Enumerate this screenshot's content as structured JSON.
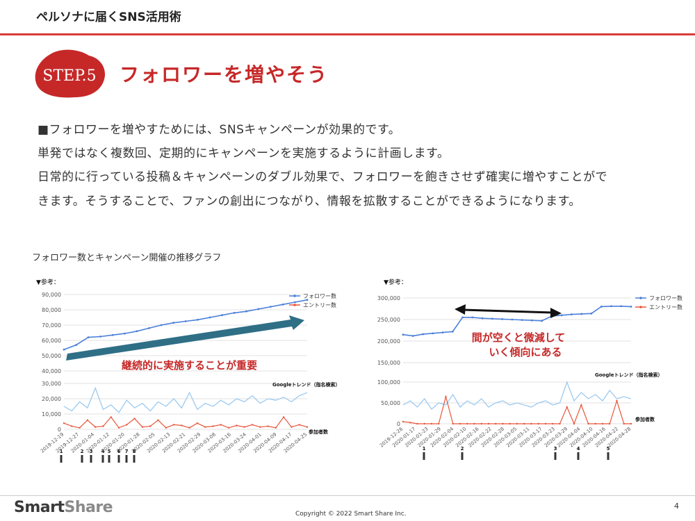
{
  "header": {
    "title": "ペルソナに届くSNS活用術"
  },
  "step": {
    "badge": "STEP.5",
    "heading": "フォロワーを増やそう"
  },
  "body_lines": [
    "■フォロワーを増やすためには、SNSキャンペーンが効果的です。",
    "単発ではなく複数回、定期的にキャンペーンを実施するように計画します。",
    "日常的に行っている投稿＆キャンペーンのダブル効果で、フォロワーを飽きさせず確実に増やすことがで",
    "きます。そうすることで、ファンの創出につながり、情報を拡散することができるようになります。"
  ],
  "chart_caption": "フォロワー数とキャンペーン開催の推移グラフ",
  "colors": {
    "accent": "#d93a3a",
    "follower": "#4a7fd8",
    "entry": "#e8563a",
    "trend": "#9ccaf0",
    "arrow_teal": "#2e6f86",
    "annotation": "#c62828"
  },
  "chart_data": [
    {
      "type": "line",
      "corner_label": "▼参考：",
      "upper": {
        "ylim": [
          40000,
          90000
        ],
        "yticks": [
          "90,000",
          "80,000",
          "70,000",
          "60,000",
          "50,000",
          "40,000"
        ],
        "series": [
          {
            "name": "フォロワー数",
            "values": [
              54000,
              57000,
              62000,
              62500,
              63500,
              64500,
              66000,
              68000,
              70000,
              71500,
              72500,
              73500,
              75000,
              76500,
              78000,
              79000,
              80500,
              82000,
              83500,
              85000,
              86500
            ]
          },
          {
            "name": "エントリー数",
            "values": []
          }
        ]
      },
      "lower": {
        "ylim": [
          0,
          30000
        ],
        "yticks": [
          "30,000",
          "20,000",
          "10,000",
          "0"
        ],
        "trend_label": "Googleトレンド（指名検索）",
        "entry_label": "参加者数",
        "trend_values": [
          15000,
          12000,
          18000,
          14000,
          27000,
          13000,
          16000,
          11000,
          19000,
          14000,
          17000,
          12000,
          18000,
          15000,
          20000,
          14000,
          24000,
          13000,
          17000,
          15000,
          19000,
          16000,
          20000,
          18000,
          22000,
          17000,
          20000,
          19000,
          21000,
          18000,
          22000,
          24000
        ],
        "entry_values": [
          4000,
          2000,
          1000,
          6000,
          1500,
          2000,
          8000,
          1000,
          3000,
          7000,
          1500,
          2000,
          6000,
          1000,
          3000,
          2500,
          1000,
          4000,
          1500,
          2000,
          3000,
          1000,
          2500,
          1500,
          3000,
          1500,
          2000,
          1000,
          8000,
          1500,
          3000,
          1500
        ]
      },
      "x_ticks": [
        "2019-12-19",
        "2019-12-27",
        "2020-01-04",
        "2020-01-12",
        "2020-01-20",
        "2020-01-28",
        "2020-02-05",
        "2020-02-13",
        "2020-02-21",
        "2020-02-29",
        "2020-03-08",
        "2020-03-16",
        "2020-03-24",
        "2020-04-01",
        "2020-04-09",
        "2020-04-17",
        "2020-04-25"
      ],
      "campaign_markers": [
        "1",
        "2",
        "3",
        "4",
        "5",
        "6",
        "7",
        "8"
      ],
      "annotation": "継続的に実施することが重要"
    },
    {
      "type": "line",
      "corner_label": "▼参考：",
      "upper": {
        "ylim": [
          150000,
          300000
        ],
        "yticks": [
          "300,000",
          "250,000",
          "200,000",
          "150,000"
        ],
        "series": [
          {
            "name": "フォロワー数",
            "values": [
              215000,
              212000,
              216000,
              218000,
              220000,
              222000,
              255000,
              255000,
              253000,
              252000,
              251000,
              250000,
              249000,
              248000,
              247000,
              258000,
              260000,
              262000,
              263000,
              264000,
              280000,
              281000,
              281000,
              280000
            ]
          },
          {
            "name": "エントリー数",
            "values": []
          }
        ]
      },
      "lower": {
        "ylim": [
          0,
          100000
        ],
        "yticks": [
          "100,000",
          "50,000",
          "0"
        ],
        "trend_label": "Googleトレンド（指名検索）",
        "entry_label": "参加者数",
        "trend_values": [
          45000,
          55000,
          40000,
          60000,
          35000,
          50000,
          45000,
          70000,
          40000,
          55000,
          45000,
          60000,
          40000,
          50000,
          55000,
          45000,
          50000,
          45000,
          40000,
          50000,
          55000,
          45000,
          50000,
          100000,
          55000,
          75000,
          60000,
          70000,
          55000,
          80000,
          60000,
          65000,
          60000
        ],
        "entry_values": [
          5000,
          3000,
          0,
          0,
          0,
          0,
          65000,
          0,
          0,
          0,
          0,
          0,
          0,
          0,
          0,
          0,
          0,
          0,
          0,
          0,
          0,
          0,
          0,
          40000,
          0,
          45000,
          0,
          0,
          0,
          0,
          55000,
          0,
          0
        ]
      },
      "x_ticks": [
        "2019-12-26",
        "2020-01-17",
        "2020-01-23",
        "2020-01-29",
        "2020-02-04",
        "2020-02-10",
        "2020-02-16",
        "2020-02-22",
        "2020-02-28",
        "2020-03-05",
        "2020-03-11",
        "2020-03-17",
        "2020-03-23",
        "2020-03-29",
        "2020-04-04",
        "2020-04-10",
        "2020-04-16",
        "2020-04-22",
        "2020-04-28"
      ],
      "campaign_markers": [
        "1",
        "2",
        "3",
        "4",
        "5"
      ],
      "annotation_lines": [
        "間が空くと微減して",
        "いく傾向にある"
      ]
    }
  ],
  "footer": {
    "logo_bold": "Smart",
    "logo_light": "Share",
    "copyright": "Copyright © 2022 Smart Share Inc.",
    "page_number": "4"
  }
}
